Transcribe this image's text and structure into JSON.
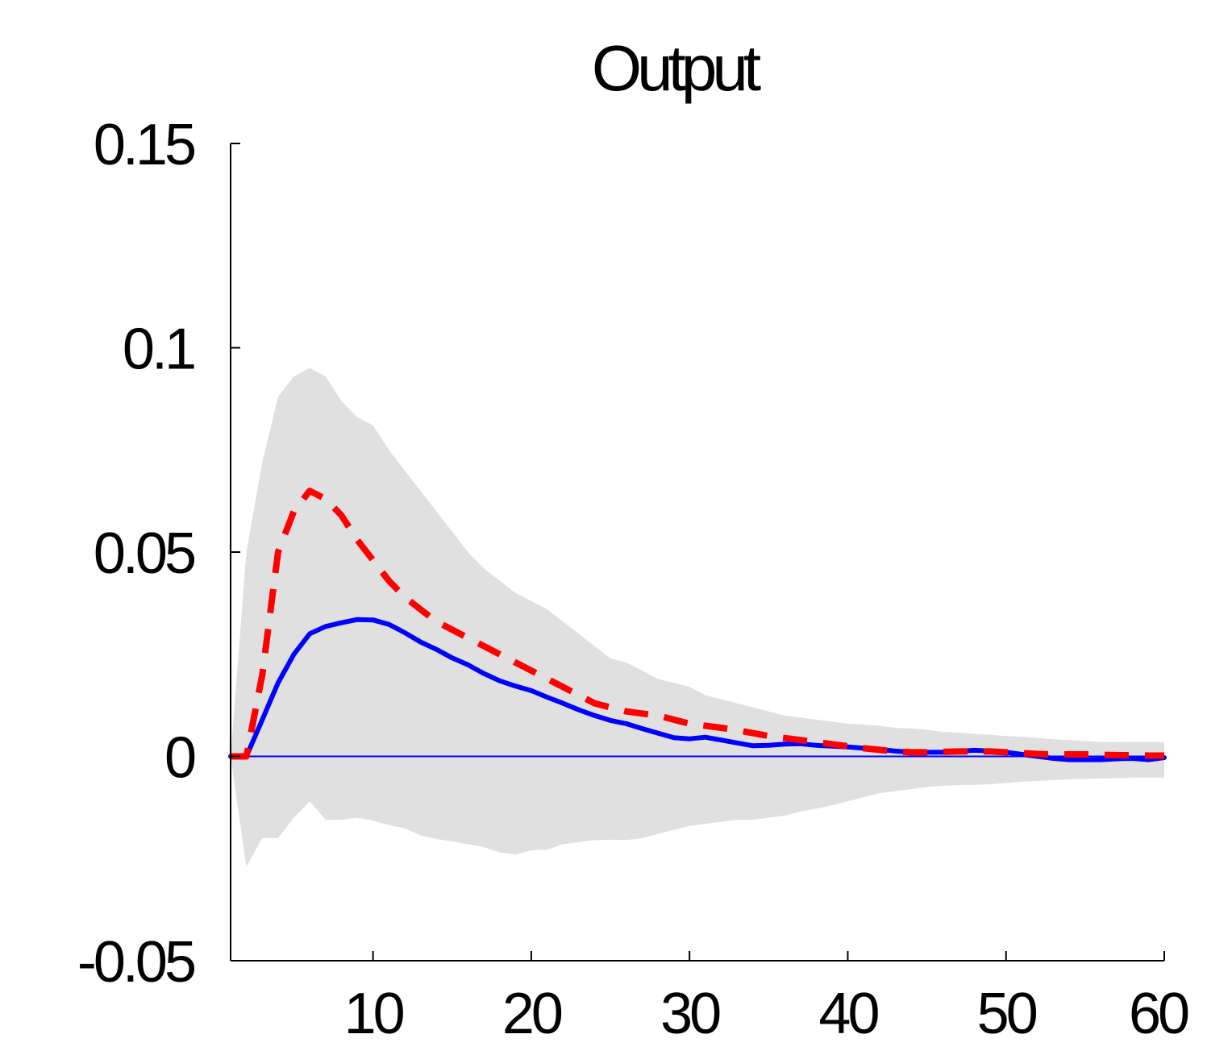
{
  "chart_data": {
    "type": "line",
    "title": "Output",
    "xlabel": "",
    "ylabel": "",
    "xlim": [
      1,
      60
    ],
    "ylim": [
      -0.05,
      0.15
    ],
    "x_ticks": [
      10,
      20,
      30,
      40,
      50,
      60
    ],
    "x_tick_labels": [
      "10",
      "20",
      "30",
      "40",
      "50",
      "60"
    ],
    "y_ticks": [
      -0.05,
      0,
      0.05,
      0.1,
      0.15
    ],
    "y_tick_labels": [
      "-0.05",
      "0",
      "0.05",
      "0.1",
      "0.15"
    ],
    "grid": false,
    "zero_line": true,
    "colors": {
      "solid": "#0000ff",
      "dashed": "#ff0000",
      "band": "#e0e0e0",
      "axis": "#000000"
    },
    "x": [
      1,
      2,
      3,
      4,
      5,
      6,
      7,
      8,
      9,
      10,
      11,
      12,
      13,
      14,
      15,
      16,
      17,
      18,
      19,
      20,
      21,
      22,
      23,
      24,
      25,
      26,
      27,
      28,
      29,
      30,
      31,
      32,
      33,
      34,
      35,
      36,
      37,
      38,
      39,
      40,
      41,
      42,
      43,
      44,
      45,
      46,
      47,
      48,
      49,
      50,
      51,
      52,
      53,
      54,
      55,
      56,
      57,
      58,
      59,
      60
    ],
    "series": [
      {
        "style": "solid",
        "values": [
          0,
          0,
          0.009,
          0.018,
          0.025,
          0.03,
          0.0318,
          0.0327,
          0.0335,
          0.0334,
          0.0323,
          0.0303,
          0.028,
          0.0262,
          0.0241,
          0.0224,
          0.0203,
          0.0185,
          0.0172,
          0.0161,
          0.0145,
          0.013,
          0.0114,
          0.01,
          0.0088,
          0.008,
          0.0068,
          0.0057,
          0.0046,
          0.0043,
          0.0047,
          0.004,
          0.0033,
          0.0026,
          0.0027,
          0.003,
          0.0031,
          0.0027,
          0.0025,
          0.0023,
          0.002,
          0.0017,
          0.0013,
          0.001,
          0.001,
          0.001,
          0.0012,
          0.0015,
          0.0013,
          0.001,
          0.0005,
          0,
          -0.0005,
          -0.0008,
          -0.0008,
          -0.0008,
          -0.0006,
          -0.0005,
          -0.0008,
          -0.0003
        ]
      },
      {
        "style": "dashed",
        "values": [
          0,
          0,
          0.02,
          0.05,
          0.06,
          0.065,
          0.063,
          0.059,
          0.053,
          0.048,
          0.043,
          0.039,
          0.036,
          0.033,
          0.031,
          0.029,
          0.027,
          0.025,
          0.023,
          0.021,
          0.019,
          0.017,
          0.015,
          0.013,
          0.012,
          0.011,
          0.0105,
          0.01,
          0.009,
          0.008,
          0.0075,
          0.007,
          0.0064,
          0.0057,
          0.005,
          0.0045,
          0.004,
          0.0035,
          0.003,
          0.0025,
          0.002,
          0.0016,
          0.0012,
          0.001,
          0.001,
          0.0011,
          0.0012,
          0.0012,
          0.0012,
          0.001,
          0.0008,
          0.0006,
          0.0005,
          0.0005,
          0.0005,
          0.0004,
          0.0003,
          0.0003,
          0.0002,
          0.0002
        ]
      }
    ],
    "band": {
      "upper": [
        0,
        0.05,
        0.072,
        0.088,
        0.093,
        0.095,
        0.093,
        0.087,
        0.083,
        0.081,
        0.075,
        0.07,
        0.065,
        0.06,
        0.055,
        0.05,
        0.046,
        0.043,
        0.04,
        0.038,
        0.036,
        0.033,
        0.03,
        0.027,
        0.024,
        0.023,
        0.021,
        0.019,
        0.018,
        0.017,
        0.015,
        0.014,
        0.013,
        0.012,
        0.011,
        0.01,
        0.0095,
        0.009,
        0.0085,
        0.008,
        0.0078,
        0.0075,
        0.007,
        0.0068,
        0.0065,
        0.006,
        0.0058,
        0.0055,
        0.0053,
        0.005,
        0.0048,
        0.0045,
        0.0042,
        0.004,
        0.0038,
        0.0035,
        0.0035,
        0.0035,
        0.0035,
        0.0035
      ],
      "lower": [
        0,
        -0.027,
        -0.02,
        -0.02,
        -0.015,
        -0.011,
        -0.0155,
        -0.0155,
        -0.015,
        -0.0157,
        -0.0168,
        -0.0176,
        -0.0193,
        -0.0202,
        -0.0208,
        -0.0215,
        -0.0222,
        -0.0235,
        -0.024,
        -0.023,
        -0.0228,
        -0.0215,
        -0.021,
        -0.0205,
        -0.0204,
        -0.0205,
        -0.02,
        -0.019,
        -0.018,
        -0.017,
        -0.0165,
        -0.016,
        -0.0155,
        -0.0155,
        -0.015,
        -0.0145,
        -0.0135,
        -0.0128,
        -0.012,
        -0.011,
        -0.01,
        -0.009,
        -0.0085,
        -0.008,
        -0.0075,
        -0.0072,
        -0.007,
        -0.007,
        -0.0068,
        -0.0065,
        -0.0062,
        -0.006,
        -0.0058,
        -0.0056,
        -0.0055,
        -0.0054,
        -0.0053,
        -0.0052,
        -0.0052,
        -0.0052
      ]
    }
  }
}
